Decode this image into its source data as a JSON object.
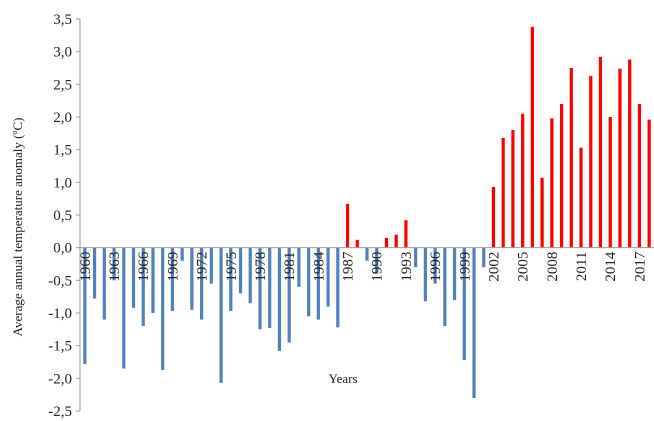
{
  "chart_data": {
    "type": "bar",
    "xlabel": "Years",
    "ylabel": "Average annual temperature anomaly (ºC)",
    "ylim": [
      -2.5,
      3.5
    ],
    "ytick_step": 0.5,
    "ytick_labels": [
      "-2,5",
      "-2,0",
      "-1,5",
      "-1,0",
      "-0,5",
      "0,0",
      "0,5",
      "1,0",
      "1,5",
      "2,0",
      "2,5",
      "3,0",
      "3,5"
    ],
    "xtick_labels": [
      "1960",
      "1963",
      "1966",
      "1969",
      "1972",
      "1975",
      "1978",
      "1981",
      "1984",
      "1987",
      "1990",
      "1993",
      "1996",
      "1999",
      "2002",
      "2005",
      "2008",
      "2011",
      "2014",
      "2017"
    ],
    "grid": false,
    "legend": "none",
    "colors": {
      "negative": "#4f81bd",
      "positive": "#ff0000",
      "axis": "#999999"
    },
    "categories": [
      1960,
      1961,
      1962,
      1963,
      1964,
      1965,
      1966,
      1967,
      1968,
      1969,
      1970,
      1971,
      1972,
      1973,
      1974,
      1975,
      1976,
      1977,
      1978,
      1979,
      1980,
      1981,
      1982,
      1983,
      1984,
      1985,
      1986,
      1987,
      1988,
      1989,
      1990,
      1991,
      1992,
      1993,
      1994,
      1995,
      1996,
      1997,
      1998,
      1999,
      2000,
      2001,
      2002,
      2003,
      2004,
      2005,
      2006,
      2007,
      2008,
      2009,
      2010,
      2011,
      2012,
      2013,
      2014,
      2015,
      2016,
      2017,
      2018
    ],
    "values": [
      -1.78,
      -0.78,
      -1.1,
      -0.5,
      -1.85,
      -0.92,
      -1.2,
      -1.0,
      -1.87,
      -0.97,
      -0.2,
      -0.95,
      -1.1,
      -0.55,
      -2.07,
      -0.97,
      -0.7,
      -0.85,
      -1.25,
      -1.23,
      -1.58,
      -1.45,
      -0.6,
      -1.05,
      -1.1,
      -0.9,
      -1.22,
      0.67,
      0.12,
      -0.2,
      -0.4,
      0.15,
      0.2,
      0.42,
      -0.3,
      -0.82,
      -0.55,
      -1.2,
      -0.8,
      -1.72,
      -2.3,
      -0.3,
      0.93,
      1.68,
      1.8,
      2.05,
      3.38,
      1.07,
      1.98,
      2.2,
      2.75,
      1.53,
      2.63,
      2.92,
      2.0,
      2.74,
      2.88,
      2.2,
      1.96
    ]
  }
}
